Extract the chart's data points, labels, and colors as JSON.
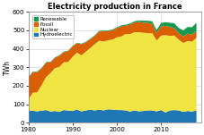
{
  "title": "Electricity production in France",
  "ylabel": "TWh",
  "xlim": [
    1980,
    2019
  ],
  "ylim": [
    0,
    600
  ],
  "yticks": [
    0,
    100,
    200,
    300,
    400,
    500,
    600
  ],
  "xticks": [
    1980,
    1990,
    2000,
    2010
  ],
  "years": [
    1980,
    1981,
    1982,
    1983,
    1984,
    1985,
    1986,
    1987,
    1988,
    1989,
    1990,
    1991,
    1992,
    1993,
    1994,
    1995,
    1996,
    1997,
    1998,
    1999,
    2000,
    2001,
    2002,
    2003,
    2004,
    2005,
    2006,
    2007,
    2008,
    2009,
    2010,
    2011,
    2012,
    2013,
    2014,
    2015,
    2016,
    2017,
    2018
  ],
  "hydroelectric": [
    68,
    65,
    62,
    66,
    69,
    61,
    64,
    59,
    69,
    66,
    64,
    72,
    62,
    67,
    71,
    67,
    71,
    67,
    73,
    72,
    69,
    69,
    67,
    61,
    67,
    62,
    64,
    67,
    67,
    62,
    69,
    56,
    67,
    69,
    67,
    59,
    64,
    61,
    67
  ],
  "nuclear": [
    58,
    98,
    103,
    138,
    178,
    208,
    232,
    243,
    258,
    263,
    293,
    308,
    303,
    318,
    333,
    358,
    373,
    373,
    373,
    378,
    393,
    398,
    413,
    418,
    423,
    428,
    423,
    418,
    418,
    383,
    403,
    418,
    403,
    403,
    383,
    373,
    378,
    378,
    393
  ],
  "fossil": [
    118,
    110,
    110,
    90,
    78,
    58,
    55,
    60,
    55,
    58,
    56,
    50,
    60,
    50,
    48,
    45,
    50,
    55,
    50,
    50,
    50,
    55,
    45,
    52,
    52,
    55,
    55,
    55,
    50,
    40,
    50,
    50,
    48,
    40,
    35,
    35,
    40,
    38,
    35
  ],
  "renewable": [
    3,
    3,
    3,
    3,
    3,
    3,
    3,
    3,
    3,
    3,
    3,
    3,
    3,
    3,
    3,
    3,
    3,
    3,
    4,
    4,
    5,
    5,
    6,
    6,
    7,
    8,
    10,
    12,
    14,
    16,
    18,
    20,
    23,
    26,
    28,
    33,
    36,
    40,
    46
  ],
  "colors": {
    "hydroelectric": "#1f77b4",
    "nuclear": "#f0e442",
    "fossil": "#d95f02",
    "renewable": "#1a9850"
  },
  "legend_labels": [
    "Renewable",
    "Fossil",
    "Nuclear",
    "Hydroelectric"
  ],
  "legend_colors": [
    "#1a9850",
    "#d95f02",
    "#f0e442",
    "#1f77b4"
  ],
  "background_color": "#ffffff",
  "grid_color": "#bbbbbb"
}
